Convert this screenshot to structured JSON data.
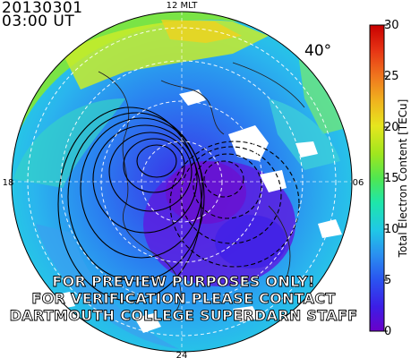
{
  "header": {
    "date": "20130301",
    "time": "03:00  UT"
  },
  "map": {
    "mlt_labels": {
      "top": "12 MLT",
      "left": "18",
      "right": "06",
      "bottom": "24"
    },
    "latitude_label": "40°",
    "watermark": [
      "FOR PREVIEW PURPOSES ONLY!",
      "FOR VERIFICATION PLEASE CONTACT",
      "DARTMOUTH COLLEGE SUPERDARN STAFF"
    ]
  },
  "colorbar": {
    "title": "Total Electron Content [TECu]",
    "ticks": [
      "0",
      "5",
      "10",
      "15",
      "20",
      "25",
      "30"
    ],
    "min": 0,
    "max": 30,
    "colors": [
      "#6a00c8",
      "#3c1ee6",
      "#2a55f0",
      "#2a90f0",
      "#20c8e6",
      "#1ee6aa",
      "#50e650",
      "#a0e61e",
      "#e6e61e",
      "#f0b41e",
      "#f0781e",
      "#e63214",
      "#c80000"
    ]
  }
}
